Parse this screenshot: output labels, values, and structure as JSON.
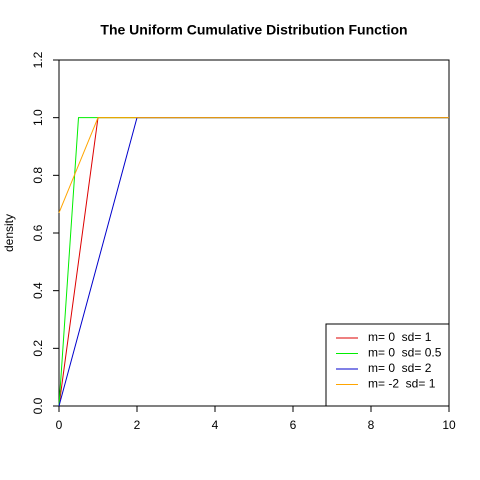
{
  "chart_data": {
    "type": "line",
    "title": "The Uniform Cumulative Distribution Function",
    "ylabel": "density",
    "series": [
      {
        "name": "m= 0  sd= 1",
        "color": "#dd0000",
        "x": [
          0,
          1,
          10
        ],
        "values": [
          0,
          1,
          1
        ]
      },
      {
        "name": "m= 0  sd= 0.5",
        "color": "#00ee00",
        "x": [
          0,
          0.5,
          10
        ],
        "values": [
          0,
          1,
          1
        ]
      },
      {
        "name": "m= 0  sd= 2",
        "color": "#0000cc",
        "x": [
          0,
          2,
          10
        ],
        "values": [
          0,
          1,
          1
        ]
      },
      {
        "name": "m= -2  sd= 1",
        "color": "#ffa500",
        "x": [
          0,
          1,
          10
        ],
        "values": [
          0.67,
          1,
          1
        ]
      }
    ],
    "xlim": [
      0,
      10
    ],
    "xticks": [
      0,
      2,
      4,
      6,
      8,
      10
    ],
    "ylim": [
      0,
      1.2
    ],
    "yticks": [
      {
        "value": 0,
        "label": "0.0"
      },
      0.2,
      0.4,
      0.6,
      0.8,
      {
        "value": 1,
        "label": "1.0"
      },
      1.2
    ],
    "legend": "bottomright"
  }
}
